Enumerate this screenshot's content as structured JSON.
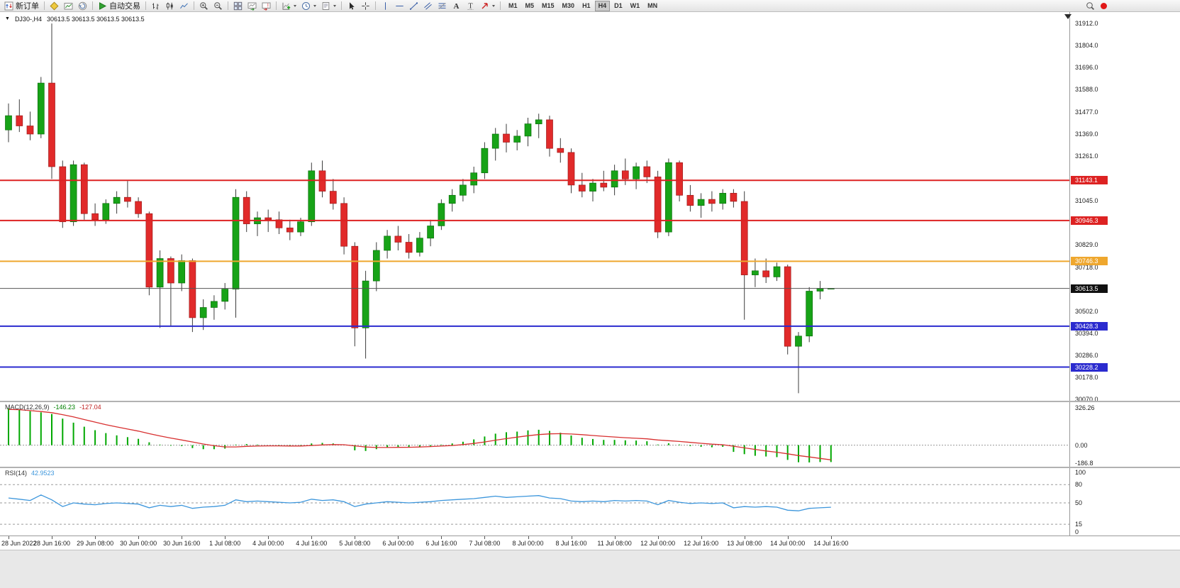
{
  "toolbar": {
    "new_order_label": "新订单",
    "auto_trading_label": "自动交易",
    "timeframes": [
      "M1",
      "M5",
      "M15",
      "M30",
      "H1",
      "H4",
      "D1",
      "W1",
      "MN"
    ],
    "active_timeframe": "H4"
  },
  "chart": {
    "symbol_period": "DJ30-,H4",
    "ohlc_text": "30613.5 30613.5 30613.5 30613.5"
  },
  "colors": {
    "bull": "#17a317",
    "bear": "#e12a2a",
    "wick": "#3c3c3c",
    "resistance": "#dd2222",
    "pivot": "#efa72e",
    "support": "#2b2bcf",
    "current": "#111111"
  },
  "chart_data": [
    {
      "type": "candlestick",
      "symbol": "DJ30-",
      "period": "H4",
      "title": "DJ30-,H4",
      "y_range": [
        30063,
        31968
      ],
      "y_ticks": [
        {
          "p": 31912.0,
          "t": "31912.0"
        },
        {
          "p": 31804.0,
          "t": "31804.0"
        },
        {
          "p": 31696.0,
          "t": "31696.0"
        },
        {
          "p": 31588.0,
          "t": "31588.0"
        },
        {
          "p": 31477.0,
          "t": "31477.0"
        },
        {
          "p": 31369.0,
          "t": "31369.0"
        },
        {
          "p": 31261.0,
          "t": "31261.0"
        },
        {
          "p": 31045.0,
          "t": "31045.0"
        },
        {
          "p": 30829.0,
          "t": "30829.0"
        },
        {
          "p": 30718.0,
          "t": "30718.0"
        },
        {
          "p": 30502.0,
          "t": "30502.0"
        },
        {
          "p": 30394.0,
          "t": "30394.0"
        },
        {
          "p": 30286.0,
          "t": "30286.0"
        },
        {
          "p": 30178.0,
          "t": "30178.0"
        },
        {
          "p": 30070.0,
          "t": "30070.0"
        }
      ],
      "levels": [
        {
          "price": 31143.1,
          "t": "31143.1",
          "color": "#dd2222",
          "width": 2
        },
        {
          "price": 30946.3,
          "t": "30946.3",
          "color": "#dd2222",
          "width": 2
        },
        {
          "price": 30746.3,
          "t": "30746.3",
          "color": "#efa72e",
          "width": 2
        },
        {
          "price": 30428.3,
          "t": "30428.3",
          "color": "#2b2bcf",
          "width": 2
        },
        {
          "price": 30228.2,
          "t": "30228.2",
          "color": "#2b2bcf",
          "width": 2
        }
      ],
      "current": {
        "price": 30613.5,
        "t": "30613.5"
      },
      "x_labels": [
        {
          "i": 0,
          "t": "28 Jun 2022"
        },
        {
          "i": 4,
          "t": "28 Jun 16:00"
        },
        {
          "i": 8,
          "t": "29 Jun 08:00"
        },
        {
          "i": 12,
          "t": "30 Jun 00:00"
        },
        {
          "i": 16,
          "t": "30 Jun 16:00"
        },
        {
          "i": 20,
          "t": "1 Jul 08:00"
        },
        {
          "i": 24,
          "t": "4 Jul 00:00"
        },
        {
          "i": 28,
          "t": "4 Jul 16:00"
        },
        {
          "i": 32,
          "t": "5 Jul 08:00"
        },
        {
          "i": 36,
          "t": "6 Jul 00:00"
        },
        {
          "i": 40,
          "t": "6 Jul 16:00"
        },
        {
          "i": 44,
          "t": "7 Jul 08:00"
        },
        {
          "i": 48,
          "t": "8 Jul 00:00"
        },
        {
          "i": 52,
          "t": "8 Jul 16:00"
        },
        {
          "i": 56,
          "t": "11 Jul 08:00"
        },
        {
          "i": 60,
          "t": "12 Jul 00:00"
        },
        {
          "i": 64,
          "t": "12 Jul 16:00"
        },
        {
          "i": 68,
          "t": "13 Jul 08:00"
        },
        {
          "i": 72,
          "t": "14 Jul 00:00"
        },
        {
          "i": 76,
          "t": "14 Jul 16:00"
        }
      ],
      "ohlc": [
        [
          31390,
          31520,
          31330,
          31460
        ],
        [
          31460,
          31540,
          31380,
          31410
        ],
        [
          31410,
          31480,
          31340,
          31370
        ],
        [
          31370,
          31650,
          31350,
          31620
        ],
        [
          31620,
          31912,
          31150,
          31210
        ],
        [
          31210,
          31240,
          30910,
          30940
        ],
        [
          30940,
          31240,
          30920,
          31220
        ],
        [
          31220,
          31230,
          30950,
          30980
        ],
        [
          30980,
          31030,
          30920,
          30950
        ],
        [
          30950,
          31050,
          30930,
          31030
        ],
        [
          31030,
          31090,
          30980,
          31060
        ],
        [
          31060,
          31140,
          31010,
          31040
        ],
        [
          31040,
          31060,
          30960,
          30980
        ],
        [
          30980,
          30990,
          30580,
          30620
        ],
        [
          30620,
          30800,
          30420,
          30760
        ],
        [
          30760,
          30770,
          30430,
          30640
        ],
        [
          30640,
          30780,
          30600,
          30750
        ],
        [
          30750,
          30760,
          30400,
          30470
        ],
        [
          30470,
          30560,
          30410,
          30520
        ],
        [
          30520,
          30580,
          30460,
          30550
        ],
        [
          30550,
          30640,
          30510,
          30610
        ],
        [
          30610,
          31100,
          30470,
          31060
        ],
        [
          31060,
          31090,
          30890,
          30930
        ],
        [
          30930,
          30990,
          30870,
          30960
        ],
        [
          30960,
          31000,
          30890,
          30950
        ],
        [
          30950,
          30990,
          30880,
          30910
        ],
        [
          30910,
          30950,
          30850,
          30890
        ],
        [
          30890,
          30960,
          30870,
          30940
        ],
        [
          30940,
          31230,
          30920,
          31190
        ],
        [
          31190,
          31240,
          31060,
          31090
        ],
        [
          31090,
          31150,
          31000,
          31030
        ],
        [
          31030,
          31060,
          30780,
          30820
        ],
        [
          30820,
          30840,
          30330,
          30420
        ],
        [
          30420,
          30700,
          30270,
          30650
        ],
        [
          30650,
          30840,
          30600,
          30800
        ],
        [
          30800,
          30900,
          30760,
          30870
        ],
        [
          30870,
          30920,
          30800,
          30840
        ],
        [
          30840,
          30880,
          30760,
          30790
        ],
        [
          30790,
          30890,
          30770,
          30860
        ],
        [
          30860,
          30950,
          30820,
          30920
        ],
        [
          30920,
          31050,
          30900,
          31030
        ],
        [
          31030,
          31100,
          30990,
          31070
        ],
        [
          31070,
          31150,
          31040,
          31120
        ],
        [
          31120,
          31210,
          31080,
          31180
        ],
        [
          31180,
          31330,
          31150,
          31300
        ],
        [
          31300,
          31400,
          31240,
          31370
        ],
        [
          31370,
          31420,
          31280,
          31330
        ],
        [
          31330,
          31390,
          31290,
          31360
        ],
        [
          31360,
          31450,
          31310,
          31420
        ],
        [
          31420,
          31470,
          31350,
          31440
        ],
        [
          31440,
          31460,
          31260,
          31300
        ],
        [
          31300,
          31350,
          31230,
          31280
        ],
        [
          31280,
          31300,
          31080,
          31120
        ],
        [
          31120,
          31180,
          31060,
          31090
        ],
        [
          31090,
          31150,
          31040,
          31130
        ],
        [
          31130,
          31190,
          31090,
          31110
        ],
        [
          31110,
          31220,
          31070,
          31190
        ],
        [
          31190,
          31250,
          31120,
          31150
        ],
        [
          31150,
          31230,
          31100,
          31210
        ],
        [
          31210,
          31240,
          31130,
          31160
        ],
        [
          31160,
          31190,
          30860,
          30890
        ],
        [
          30890,
          31250,
          30870,
          31230
        ],
        [
          31230,
          31240,
          31040,
          31070
        ],
        [
          31070,
          31120,
          30990,
          31020
        ],
        [
          31020,
          31080,
          30960,
          31050
        ],
        [
          31050,
          31090,
          30990,
          31030
        ],
        [
          31030,
          31100,
          31000,
          31080
        ],
        [
          31080,
          31100,
          31010,
          31040
        ],
        [
          31040,
          31090,
          30460,
          30680
        ],
        [
          30680,
          30760,
          30620,
          30700
        ],
        [
          30700,
          30760,
          30640,
          30670
        ],
        [
          30670,
          30740,
          30650,
          30720
        ],
        [
          30720,
          30730,
          30290,
          30330
        ],
        [
          30330,
          30400,
          30100,
          30380
        ],
        [
          30380,
          30620,
          30350,
          30600
        ],
        [
          30600,
          30650,
          30560,
          30614
        ],
        [
          30613.5,
          30613.5,
          30613.5,
          30613.5
        ]
      ]
    },
    {
      "type": "bar",
      "name": "MACD(12,26,9)",
      "value_main": "-146.23",
      "value_signal": "-127.04",
      "y_range": [
        -186.8,
        373
      ],
      "y_ticks": [
        {
          "v": 326.26,
          "t": "326.26"
        },
        {
          "v": 0,
          "t": "0.00"
        },
        {
          "v": -186.8,
          "t": "-186.8"
        }
      ],
      "colors": {
        "hist": "#00a800",
        "signal": "#d83030"
      },
      "hist": [
        320,
        310,
        295,
        285,
        270,
        230,
        195,
        160,
        130,
        105,
        85,
        70,
        55,
        25,
        5,
        -5,
        -8,
        -25,
        -35,
        -35,
        -30,
        5,
        10,
        5,
        0,
        -5,
        -8,
        -5,
        15,
        20,
        15,
        0,
        -45,
        -50,
        -35,
        -20,
        -18,
        -18,
        -15,
        -8,
        5,
        15,
        30,
        50,
        75,
        100,
        112,
        118,
        128,
        134,
        124,
        108,
        84,
        64,
        54,
        46,
        46,
        42,
        40,
        34,
        6,
        16,
        6,
        -8,
        -14,
        -18,
        -14,
        -58,
        -78,
        -92,
        -98,
        -104,
        -128,
        -148,
        -150,
        -146,
        -146.23
      ],
      "signal": [
        310,
        308,
        300,
        292,
        282,
        265,
        245,
        222,
        200,
        178,
        158,
        140,
        122,
        100,
        80,
        62,
        45,
        28,
        10,
        -5,
        -15,
        -15,
        -10,
        -8,
        -6,
        -6,
        -7,
        -7,
        -3,
        2,
        5,
        4,
        -6,
        -16,
        -20,
        -20,
        -19,
        -18,
        -16,
        -12,
        -8,
        -3,
        5,
        15,
        28,
        43,
        57,
        70,
        82,
        92,
        98,
        100,
        97,
        91,
        84,
        77,
        71,
        65,
        60,
        55,
        45,
        39,
        32,
        24,
        16,
        9,
        4,
        -9,
        -23,
        -37,
        -50,
        -61,
        -75,
        -90,
        -102,
        -115,
        -127.04
      ]
    },
    {
      "type": "line",
      "name": "RSI(14)",
      "value": "42.9523",
      "y_range": [
        0,
        100
      ],
      "levels": [
        80,
        50,
        15
      ],
      "y_ticks": [
        {
          "v": 100,
          "t": "100"
        },
        {
          "v": 80,
          "t": "80"
        },
        {
          "v": 50,
          "t": "50"
        },
        {
          "v": 15,
          "t": "15"
        },
        {
          "v": 0,
          "t": "0"
        }
      ],
      "color": "#3c96dc",
      "values": [
        58,
        56,
        54,
        63,
        55,
        44,
        50,
        48,
        47,
        49,
        50,
        49,
        48,
        42,
        46,
        44,
        46,
        41,
        43,
        44,
        46,
        55,
        52,
        53,
        52,
        51,
        50,
        51,
        56,
        54,
        55,
        52,
        44,
        48,
        50,
        52,
        51,
        50,
        51,
        52,
        54,
        55,
        56,
        57,
        59,
        61,
        59,
        60,
        61,
        62,
        58,
        57,
        53,
        52,
        53,
        52,
        54,
        53,
        54,
        53,
        47,
        54,
        51,
        49,
        50,
        49,
        50,
        42,
        44,
        43,
        44,
        43,
        38,
        37,
        41,
        42,
        42.95
      ]
    }
  ]
}
